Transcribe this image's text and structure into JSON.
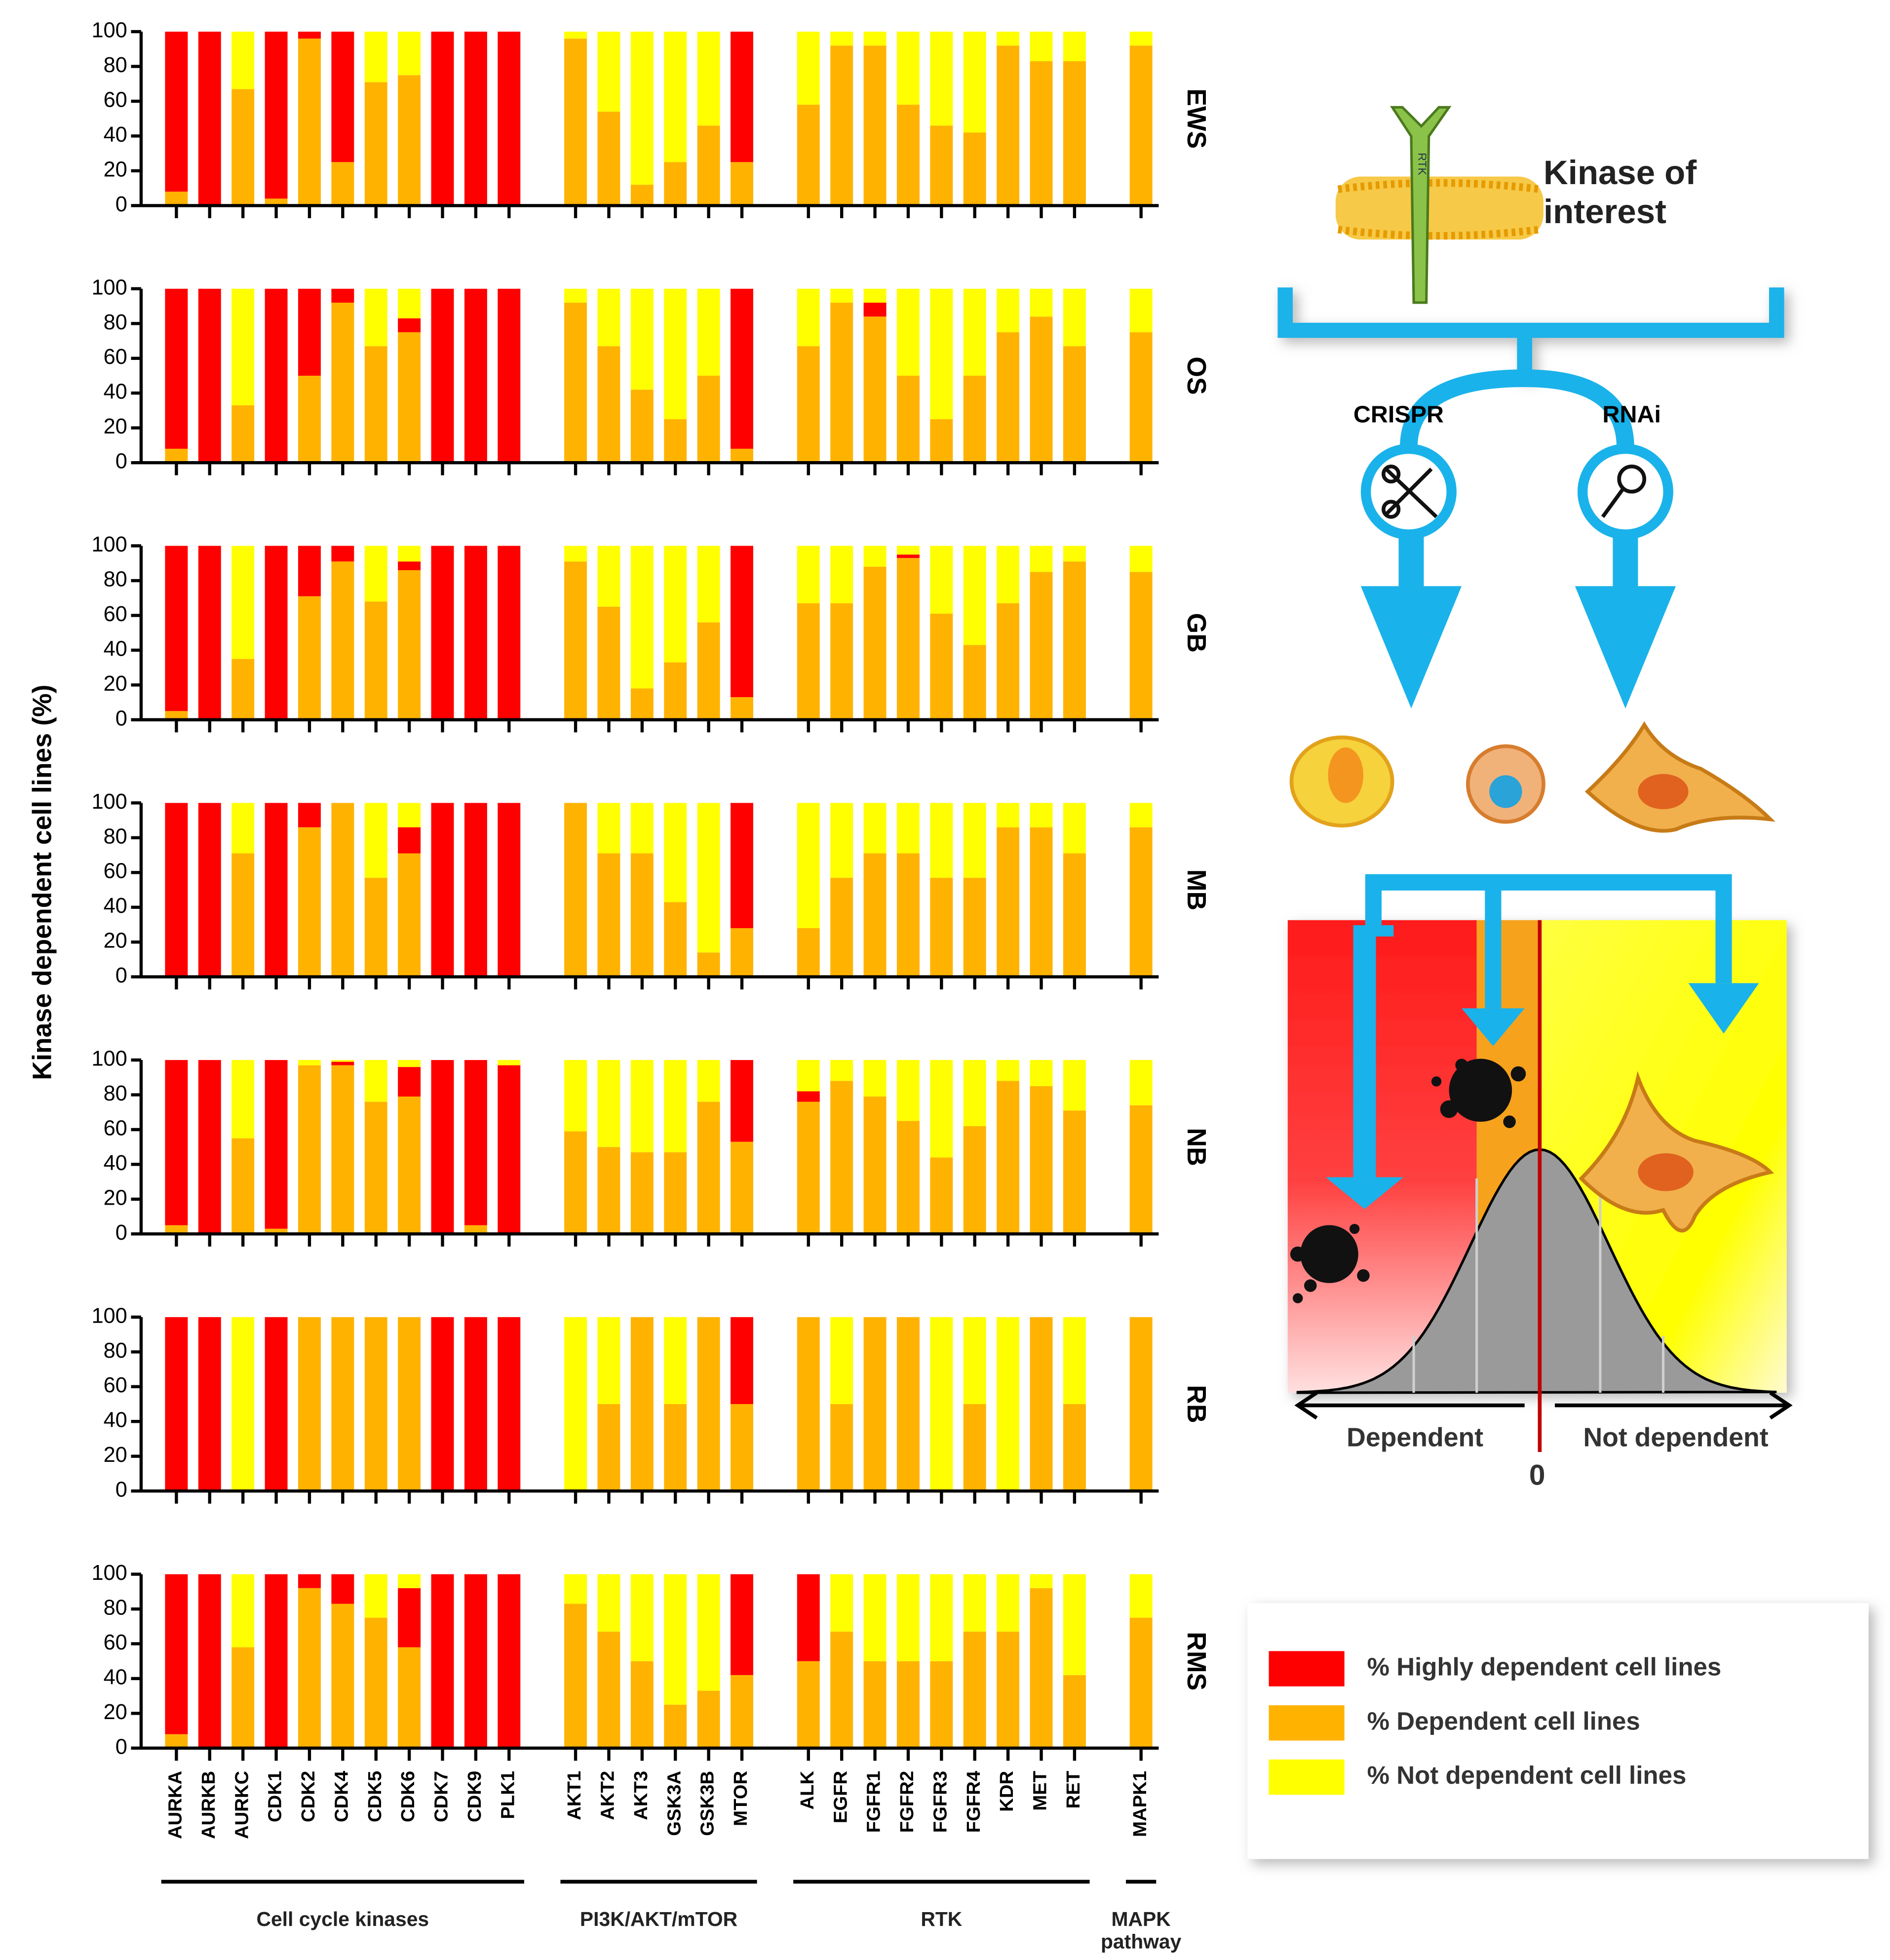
{
  "chart_data": {
    "type": "stacked_bar",
    "ylabel": "Kinase dependent cell lines (%)",
    "ylim": [
      0,
      100
    ],
    "yticks": [
      0,
      20,
      40,
      60,
      80,
      100
    ],
    "series": [
      {
        "name": "% Highly dependent cell lines",
        "color": "#ff0000"
      },
      {
        "name": "% Dependent cell lines",
        "color": "#ffb300"
      },
      {
        "name": "% Not dependent cell lines",
        "color": "#ffff00"
      }
    ],
    "groups": [
      {
        "label": "Cell cycle kinases",
        "categories": [
          "AURKA",
          "AURKB",
          "AURKC",
          "CDK1",
          "CDK2",
          "CDK4",
          "CDK5",
          "CDK6",
          "CDK7",
          "CDK9",
          "PLK1"
        ]
      },
      {
        "label": "PI3K/AKT/mTOR",
        "categories": [
          "AKT1",
          "AKT2",
          "AKT3",
          "GSK3A",
          "GSK3B",
          "MTOR"
        ]
      },
      {
        "label": "RTK",
        "categories": [
          "ALK",
          "EGFR",
          "FGFR1",
          "FGFR2",
          "FGFR3",
          "FGFR4",
          "KDR",
          "MET",
          "RET"
        ]
      },
      {
        "label": "MAPK pathway",
        "categories": [
          "MAPK1"
        ]
      }
    ],
    "panels": [
      {
        "name": "EWS",
        "series": [
          {
            "values": [
              92,
              100,
              0,
              96,
              4,
              75,
              0,
              0,
              100,
              100,
              100,
              0,
              0,
              0,
              0,
              0,
              75,
              0,
              0,
              0,
              0,
              0,
              0,
              0,
              0,
              0,
              0
            ]
          },
          {
            "values": [
              8,
              0,
              67,
              4,
              96,
              25,
              71,
              75,
              0,
              0,
              0,
              96,
              54,
              12,
              25,
              46,
              25,
              58,
              92,
              92,
              58,
              46,
              42,
              92,
              83,
              83,
              92
            ]
          },
          {
            "values": [
              0,
              0,
              33,
              0,
              0,
              0,
              29,
              25,
              0,
              0,
              0,
              4,
              46,
              88,
              75,
              54,
              0,
              42,
              8,
              8,
              42,
              54,
              58,
              8,
              17,
              17,
              8
            ]
          }
        ]
      },
      {
        "name": "OS",
        "series": [
          {
            "values": [
              92,
              100,
              0,
              100,
              50,
              8,
              0,
              8,
              100,
              100,
              100,
              0,
              0,
              0,
              0,
              0,
              92,
              0,
              0,
              8,
              0,
              0,
              0,
              0,
              0,
              0,
              0
            ]
          },
          {
            "values": [
              8,
              0,
              33,
              0,
              50,
              92,
              67,
              75,
              0,
              0,
              0,
              92,
              67,
              42,
              25,
              50,
              8,
              67,
              92,
              84,
              50,
              25,
              50,
              75,
              84,
              67,
              75
            ]
          },
          {
            "values": [
              0,
              0,
              67,
              0,
              0,
              0,
              33,
              17,
              0,
              0,
              0,
              8,
              33,
              58,
              75,
              50,
              0,
              33,
              8,
              8,
              50,
              75,
              50,
              25,
              16,
              33,
              25
            ]
          }
        ]
      },
      {
        "name": "GB",
        "series": [
          {
            "values": [
              95,
              100,
              0,
              100,
              29,
              9,
              0,
              5,
              100,
              100,
              100,
              0,
              0,
              0,
              0,
              0,
              87,
              0,
              0,
              0,
              2,
              0,
              0,
              0,
              0,
              0,
              0
            ]
          },
          {
            "values": [
              5,
              0,
              35,
              0,
              71,
              91,
              68,
              86,
              0,
              0,
              0,
              91,
              65,
              18,
              33,
              56,
              13,
              67,
              67,
              88,
              93,
              61,
              43,
              67,
              85,
              91,
              85
            ]
          },
          {
            "values": [
              0,
              0,
              65,
              0,
              0,
              0,
              32,
              9,
              0,
              0,
              0,
              9,
              35,
              82,
              67,
              44,
              0,
              33,
              33,
              12,
              5,
              39,
              57,
              33,
              15,
              9,
              15
            ]
          }
        ]
      },
      {
        "name": "MB",
        "series": [
          {
            "values": [
              100,
              100,
              0,
              100,
              14,
              0,
              0,
              15,
              100,
              100,
              100,
              0,
              0,
              0,
              0,
              0,
              72,
              0,
              0,
              0,
              0,
              0,
              0,
              0,
              0,
              0,
              0
            ]
          },
          {
            "values": [
              0,
              0,
              71,
              0,
              86,
              100,
              57,
              71,
              0,
              0,
              0,
              100,
              71,
              71,
              43,
              14,
              28,
              28,
              57,
              71,
              71,
              57,
              57,
              86,
              86,
              71,
              86
            ]
          },
          {
            "values": [
              0,
              0,
              29,
              0,
              0,
              0,
              43,
              14,
              0,
              0,
              0,
              0,
              29,
              29,
              57,
              86,
              0,
              72,
              43,
              29,
              29,
              43,
              43,
              14,
              14,
              29,
              14
            ]
          }
        ]
      },
      {
        "name": "NB",
        "series": [
          {
            "values": [
              95,
              100,
              0,
              97,
              0,
              2,
              0,
              17,
              100,
              95,
              97,
              0,
              0,
              0,
              0,
              0,
              47,
              6,
              0,
              0,
              0,
              0,
              0,
              0,
              0,
              0,
              0
            ]
          },
          {
            "values": [
              5,
              0,
              55,
              3,
              97,
              97,
              76,
              79,
              0,
              5,
              0,
              59,
              50,
              47,
              47,
              76,
              53,
              76,
              88,
              79,
              65,
              44,
              62,
              88,
              85,
              71,
              74
            ]
          },
          {
            "values": [
              0,
              0,
              45,
              0,
              3,
              1,
              24,
              4,
              0,
              0,
              3,
              41,
              50,
              53,
              53,
              24,
              0,
              18,
              12,
              21,
              35,
              56,
              38,
              12,
              15,
              29,
              26
            ]
          }
        ]
      },
      {
        "name": "RB",
        "series": [
          {
            "values": [
              100,
              100,
              0,
              100,
              0,
              0,
              0,
              0,
              100,
              100,
              100,
              0,
              0,
              0,
              0,
              0,
              50,
              0,
              0,
              0,
              0,
              0,
              0,
              0,
              0,
              0,
              0
            ]
          },
          {
            "values": [
              0,
              0,
              0,
              0,
              100,
              100,
              100,
              100,
              0,
              0,
              0,
              0,
              50,
              100,
              50,
              100,
              50,
              100,
              50,
              100,
              100,
              0,
              50,
              0,
              100,
              50,
              100
            ]
          },
          {
            "values": [
              0,
              0,
              100,
              0,
              0,
              0,
              0,
              0,
              0,
              0,
              0,
              100,
              50,
              0,
              50,
              0,
              0,
              0,
              50,
              0,
              0,
              100,
              50,
              100,
              0,
              50,
              0
            ]
          }
        ]
      },
      {
        "name": "RMS",
        "series": [
          {
            "values": [
              92,
              100,
              0,
              100,
              8,
              17,
              0,
              34,
              100,
              100,
              100,
              0,
              0,
              0,
              0,
              0,
              58,
              50,
              0,
              0,
              0,
              0,
              0,
              0,
              0,
              0,
              0
            ]
          },
          {
            "values": [
              8,
              0,
              58,
              0,
              92,
              83,
              75,
              58,
              0,
              0,
              0,
              83,
              67,
              50,
              25,
              33,
              42,
              50,
              67,
              50,
              50,
              50,
              67,
              67,
              92,
              42,
              75
            ]
          },
          {
            "values": [
              0,
              0,
              42,
              0,
              0,
              0,
              25,
              8,
              0,
              0,
              0,
              17,
              33,
              50,
              75,
              67,
              0,
              0,
              33,
              50,
              50,
              50,
              33,
              33,
              8,
              58,
              25
            ]
          }
        ]
      }
    ]
  },
  "diagram": {
    "title": "Kinase of interest",
    "protein": "RTK",
    "methods": [
      "CRISPR",
      "RNAi"
    ],
    "axis_labels": [
      "Dependent",
      "Not dependent"
    ],
    "origin": "0"
  }
}
